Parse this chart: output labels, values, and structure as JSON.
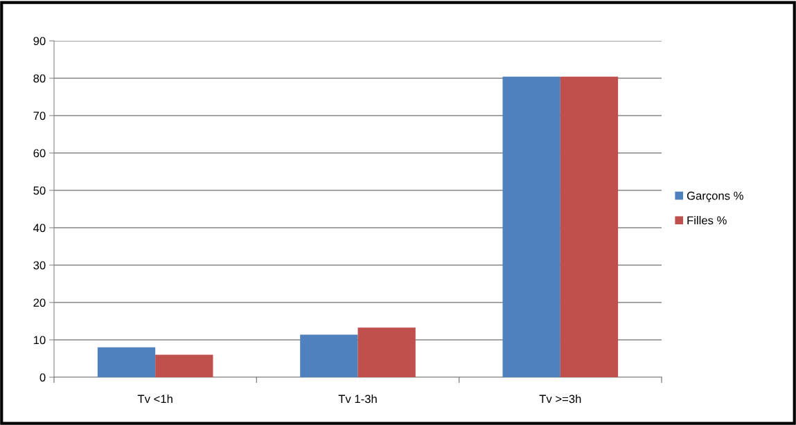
{
  "chart_data": {
    "type": "bar",
    "categories": [
      "Tv <1h",
      "Tv 1-3h",
      "Tv >=3h"
    ],
    "series": [
      {
        "name": "Garçons %",
        "color": "#4f81bd",
        "values": [
          8.0,
          11.4,
          80.4
        ]
      },
      {
        "name": "Filles %",
        "color": "#c0504d",
        "values": [
          6.0,
          13.3,
          80.4
        ]
      }
    ],
    "ylim": [
      0,
      90
    ],
    "yticks": [
      0,
      10,
      20,
      30,
      40,
      50,
      60,
      70,
      80,
      90
    ],
    "grid": "y",
    "legend": "right"
  }
}
